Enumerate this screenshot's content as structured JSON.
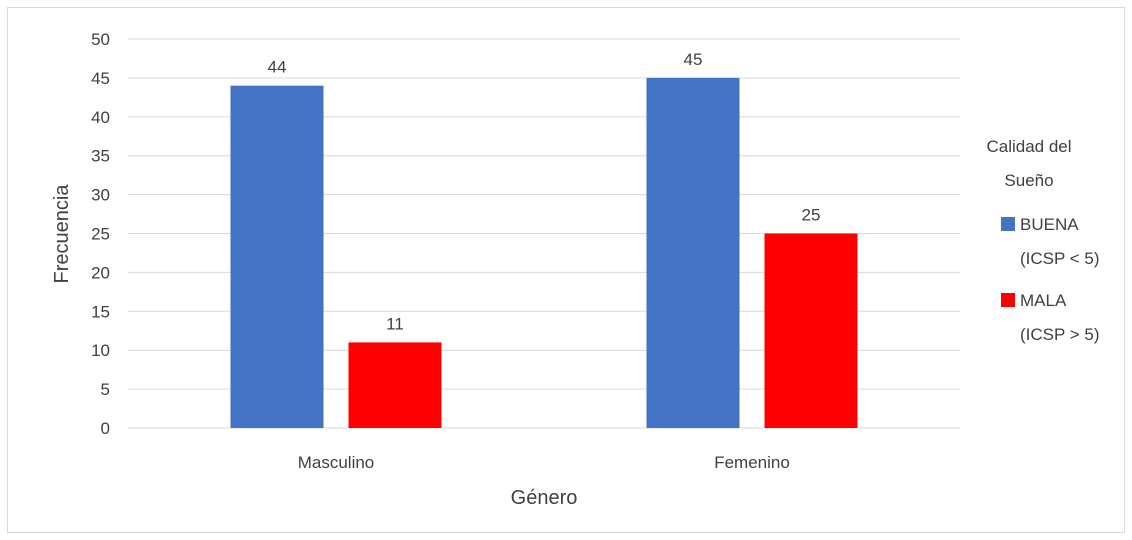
{
  "chart_data": {
    "type": "bar",
    "categories": [
      "Masculino",
      "Femenino"
    ],
    "series": [
      {
        "name": "BUENA (ICSP < 5)",
        "values": [
          44,
          45
        ],
        "color": "#4472C4"
      },
      {
        "name": "MALA (ICSP > 5)",
        "values": [
          11,
          25
        ],
        "color": "#FF0000"
      }
    ],
    "title": "",
    "xlabel": "Género",
    "ylabel": "Frecuencia",
    "ylim": [
      0,
      50
    ],
    "ytick_step": 5,
    "grid": true,
    "legend": {
      "title": "Calidad del Sueño",
      "title_lines": [
        "Calidad del",
        "Sueño"
      ],
      "placement": "right",
      "entries": [
        {
          "lines": [
            "BUENA",
            "(ICSP < 5)"
          ]
        },
        {
          "lines": [
            "MALA",
            "(ICSP > 5)"
          ]
        }
      ]
    }
  },
  "colors": {
    "grid": "#d9d9d9",
    "text": "#404040",
    "border": "#d9d9d9"
  }
}
